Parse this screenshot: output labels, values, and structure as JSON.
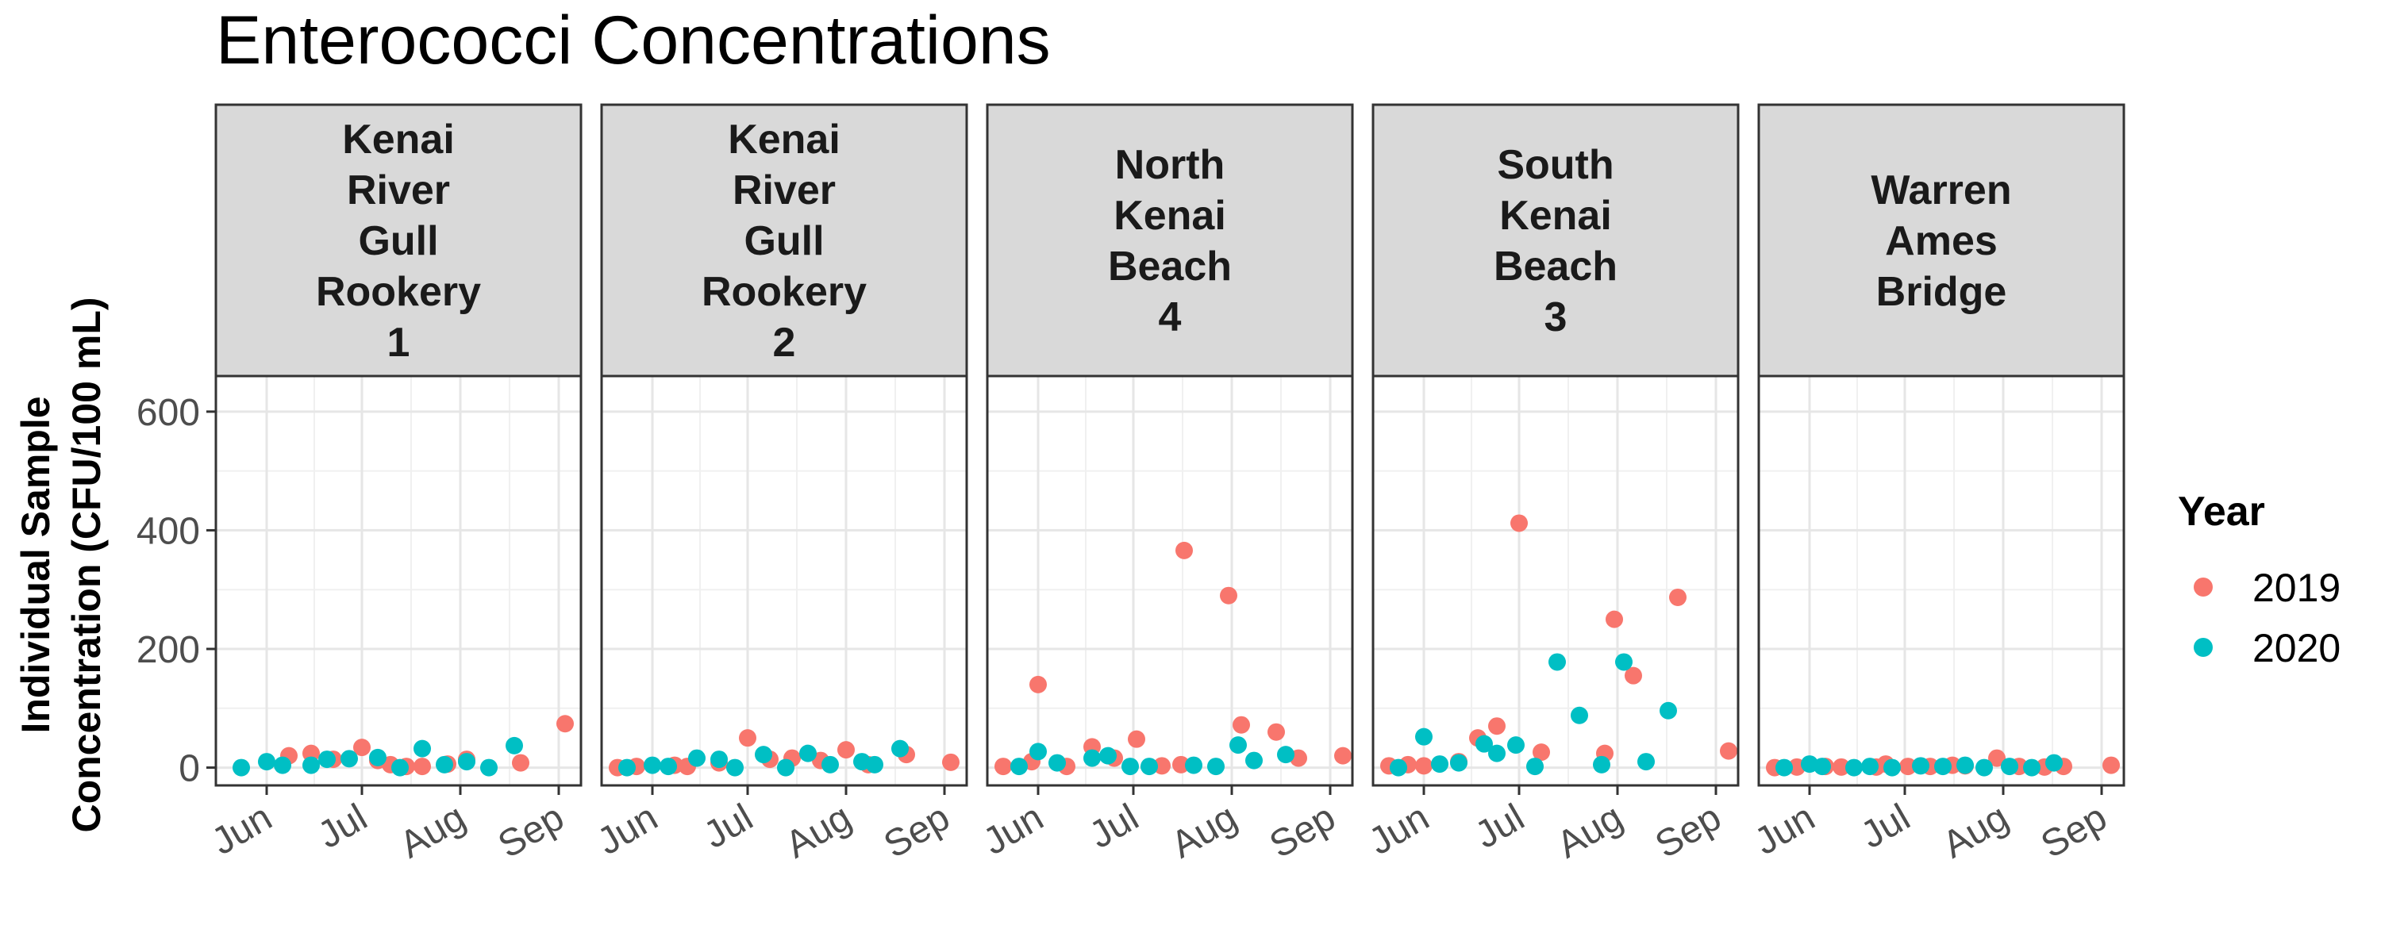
{
  "chart_data": {
    "type": "scatter",
    "title": "Enterococci Concentrations",
    "ylabel_lines": [
      "Individual Sample",
      "Concentration (CFU/100 mL)"
    ],
    "xlabel": "",
    "ylim": [
      -30,
      660
    ],
    "y_ticks": [
      0,
      200,
      400,
      600
    ],
    "x_ticks": [
      {
        "label": "Jun",
        "date": "2020-06-01"
      },
      {
        "label": "Jul",
        "date": "2020-07-01"
      },
      {
        "label": "Aug",
        "date": "2020-08-01"
      },
      {
        "label": "Sep",
        "date": "2020-09-01"
      }
    ],
    "x_range": [
      "2020-05-16",
      "2020-09-08"
    ],
    "grid": true,
    "legend": {
      "title": "Year",
      "position": "right",
      "entries": [
        {
          "name": "2019",
          "color": "#F8766D"
        },
        {
          "name": "2020",
          "color": "#00BFC4"
        }
      ]
    },
    "panels": [
      {
        "strip_lines": [
          "Kenai",
          "River",
          "Gull",
          "Rookery",
          "1"
        ],
        "series": [
          {
            "name": "2019",
            "points": [
              [
                "2020-06-08",
                20
              ],
              [
                "2020-06-15",
                24
              ],
              [
                "2020-06-22",
                14
              ],
              [
                "2020-07-01",
                34
              ],
              [
                "2020-07-06",
                12
              ],
              [
                "2020-07-10",
                5
              ],
              [
                "2020-07-15",
                2
              ],
              [
                "2020-07-20",
                2
              ],
              [
                "2020-07-28",
                6
              ],
              [
                "2020-08-03",
                14
              ],
              [
                "2020-08-20",
                8
              ],
              [
                "2020-09-03",
                74
              ]
            ]
          },
          {
            "name": "2020",
            "points": [
              [
                "2020-05-24",
                0
              ],
              [
                "2020-06-01",
                10
              ],
              [
                "2020-06-06",
                4
              ],
              [
                "2020-06-15",
                4
              ],
              [
                "2020-06-20",
                14
              ],
              [
                "2020-06-27",
                15
              ],
              [
                "2020-07-06",
                17
              ],
              [
                "2020-07-13",
                0
              ],
              [
                "2020-07-20",
                32
              ],
              [
                "2020-07-27",
                5
              ],
              [
                "2020-08-03",
                10
              ],
              [
                "2020-08-10",
                0
              ],
              [
                "2020-08-18",
                37
              ]
            ]
          }
        ]
      },
      {
        "strip_lines": [
          "Kenai",
          "River",
          "Gull",
          "Rookery",
          "2"
        ],
        "series": [
          {
            "name": "2019",
            "points": [
              [
                "2020-05-21",
                0
              ],
              [
                "2020-05-27",
                2
              ],
              [
                "2020-06-08",
                4
              ],
              [
                "2020-06-12",
                2
              ],
              [
                "2020-06-22",
                8
              ],
              [
                "2020-07-01",
                50
              ],
              [
                "2020-07-08",
                14
              ],
              [
                "2020-07-15",
                16
              ],
              [
                "2020-07-24",
                12
              ],
              [
                "2020-08-01",
                30
              ],
              [
                "2020-08-08",
                5
              ],
              [
                "2020-08-20",
                22
              ],
              [
                "2020-09-03",
                9
              ]
            ]
          },
          {
            "name": "2020",
            "points": [
              [
                "2020-05-24",
                0
              ],
              [
                "2020-06-01",
                4
              ],
              [
                "2020-06-06",
                2
              ],
              [
                "2020-06-15",
                16
              ],
              [
                "2020-06-22",
                14
              ],
              [
                "2020-06-27",
                0
              ],
              [
                "2020-07-06",
                22
              ],
              [
                "2020-07-13",
                0
              ],
              [
                "2020-07-20",
                24
              ],
              [
                "2020-07-27",
                5
              ],
              [
                "2020-08-06",
                10
              ],
              [
                "2020-08-10",
                5
              ],
              [
                "2020-08-18",
                32
              ]
            ]
          }
        ]
      },
      {
        "strip_lines": [
          "North",
          "Kenai",
          "Beach",
          "4"
        ],
        "series": [
          {
            "name": "2019",
            "points": [
              [
                "2020-05-21",
                2
              ],
              [
                "2020-05-30",
                10
              ],
              [
                "2020-06-01",
                140
              ],
              [
                "2020-06-10",
                2
              ],
              [
                "2020-06-18",
                35
              ],
              [
                "2020-06-25",
                16
              ],
              [
                "2020-07-02",
                48
              ],
              [
                "2020-07-10",
                3
              ],
              [
                "2020-07-16",
                5
              ],
              [
                "2020-07-17",
                366
              ],
              [
                "2020-07-31",
                290
              ],
              [
                "2020-08-04",
                72
              ],
              [
                "2020-08-15",
                60
              ],
              [
                "2020-08-22",
                16
              ],
              [
                "2020-09-05",
                20
              ]
            ]
          },
          {
            "name": "2020",
            "points": [
              [
                "2020-05-26",
                2
              ],
              [
                "2020-06-01",
                27
              ],
              [
                "2020-06-07",
                8
              ],
              [
                "2020-06-18",
                16
              ],
              [
                "2020-06-23",
                20
              ],
              [
                "2020-06-30",
                2
              ],
              [
                "2020-07-06",
                2
              ],
              [
                "2020-07-20",
                4
              ],
              [
                "2020-07-27",
                2
              ],
              [
                "2020-08-03",
                38
              ],
              [
                "2020-08-08",
                12
              ],
              [
                "2020-08-18",
                22
              ]
            ]
          }
        ]
      },
      {
        "strip_lines": [
          "South",
          "Kenai",
          "Beach",
          "3"
        ],
        "series": [
          {
            "name": "2019",
            "points": [
              [
                "2020-05-21",
                3
              ],
              [
                "2020-05-27",
                5
              ],
              [
                "2020-06-01",
                3
              ],
              [
                "2020-06-12",
                10
              ],
              [
                "2020-06-18",
                50
              ],
              [
                "2020-06-24",
                70
              ],
              [
                "2020-07-01",
                412
              ],
              [
                "2020-07-08",
                26
              ],
              [
                "2020-07-28",
                24
              ],
              [
                "2020-07-31",
                250
              ],
              [
                "2020-08-06",
                155
              ],
              [
                "2020-08-20",
                287
              ],
              [
                "2020-09-05",
                28
              ]
            ]
          },
          {
            "name": "2020",
            "points": [
              [
                "2020-05-24",
                0
              ],
              [
                "2020-06-01",
                52
              ],
              [
                "2020-06-06",
                6
              ],
              [
                "2020-06-12",
                8
              ],
              [
                "2020-06-20",
                40
              ],
              [
                "2020-06-24",
                24
              ],
              [
                "2020-06-30",
                38
              ],
              [
                "2020-07-06",
                2
              ],
              [
                "2020-07-13",
                178
              ],
              [
                "2020-07-20",
                88
              ],
              [
                "2020-07-27",
                5
              ],
              [
                "2020-08-03",
                178
              ],
              [
                "2020-08-10",
                10
              ],
              [
                "2020-08-17",
                96
              ]
            ]
          }
        ]
      },
      {
        "strip_lines": [
          "Warren",
          "Ames",
          "Bridge"
        ],
        "series": [
          {
            "name": "2019",
            "points": [
              [
                "2020-05-21",
                0
              ],
              [
                "2020-05-28",
                1
              ],
              [
                "2020-06-06",
                2
              ],
              [
                "2020-06-11",
                1
              ],
              [
                "2020-06-22",
                1
              ],
              [
                "2020-06-25",
                6
              ],
              [
                "2020-07-02",
                2
              ],
              [
                "2020-07-09",
                2
              ],
              [
                "2020-07-16",
                4
              ],
              [
                "2020-07-20",
                3
              ],
              [
                "2020-07-30",
                16
              ],
              [
                "2020-08-06",
                2
              ],
              [
                "2020-08-14",
                1
              ],
              [
                "2020-08-20",
                2
              ],
              [
                "2020-09-04",
                4
              ]
            ]
          },
          {
            "name": "2020",
            "points": [
              [
                "2020-05-24",
                0
              ],
              [
                "2020-06-01",
                6
              ],
              [
                "2020-06-05",
                2
              ],
              [
                "2020-06-15",
                0
              ],
              [
                "2020-06-20",
                2
              ],
              [
                "2020-06-27",
                0
              ],
              [
                "2020-07-06",
                3
              ],
              [
                "2020-07-13",
                2
              ],
              [
                "2020-07-20",
                4
              ],
              [
                "2020-07-26",
                0
              ],
              [
                "2020-08-03",
                2
              ],
              [
                "2020-08-10",
                0
              ],
              [
                "2020-08-17",
                8
              ]
            ]
          }
        ]
      }
    ]
  }
}
